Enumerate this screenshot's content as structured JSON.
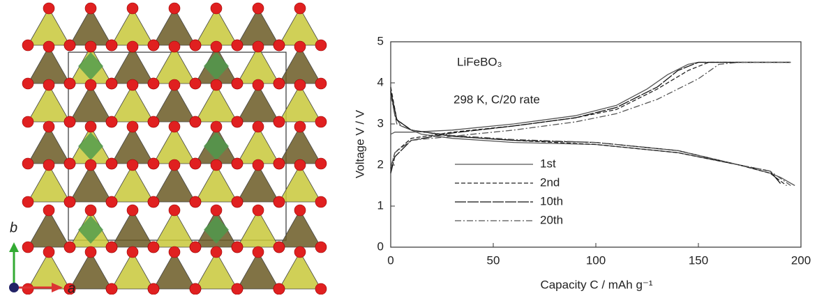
{
  "figure": {
    "axis_b": "b",
    "axis_a": "a"
  },
  "chart_data": {
    "type": "line",
    "x_label": "Capacity C / mAh g⁻¹",
    "y_label": "Voltage V / V",
    "annotations": [
      "LiFeBO₃",
      "298 K, C/20 rate"
    ],
    "xlim": [
      0,
      200
    ],
    "xticks": [
      0,
      50,
      100,
      150,
      200
    ],
    "ylim": [
      0,
      5
    ],
    "yticks": [
      0,
      1,
      2,
      3,
      4,
      5
    ],
    "legend": "lower-left",
    "series": [
      {
        "name": "1st",
        "color": "#555",
        "dash": "solid",
        "x": [
          0,
          2,
          10,
          30,
          60,
          90,
          110,
          125,
          135,
          145,
          150,
          170,
          195,
          null,
          0,
          2,
          5,
          15,
          30,
          60,
          100,
          140,
          170,
          185,
          190,
          197
        ],
        "values": [
          2.75,
          2.8,
          2.8,
          2.85,
          3.0,
          3.2,
          3.45,
          3.85,
          4.2,
          4.45,
          4.5,
          4.5,
          4.5,
          null,
          3.8,
          3.2,
          2.95,
          2.75,
          2.65,
          2.55,
          2.5,
          2.3,
          2.0,
          1.8,
          1.7,
          1.5
        ]
      },
      {
        "name": "2nd",
        "color": "#222",
        "dash": "dashed",
        "x": [
          0,
          2,
          10,
          30,
          60,
          90,
          110,
          130,
          145,
          155,
          170,
          195,
          null,
          0,
          3,
          10,
          30,
          60,
          100,
          140,
          170,
          185,
          193
        ],
        "values": [
          1.9,
          2.3,
          2.65,
          2.8,
          2.95,
          3.15,
          3.35,
          3.85,
          4.3,
          4.5,
          4.5,
          4.5,
          null,
          3.9,
          3.1,
          2.85,
          2.7,
          2.6,
          2.5,
          2.3,
          2.0,
          1.8,
          1.5
        ]
      },
      {
        "name": "10th",
        "color": "#111",
        "dash": "longdash",
        "x": [
          0,
          2,
          10,
          30,
          60,
          90,
          110,
          130,
          140,
          150,
          170,
          195,
          null,
          0,
          3,
          10,
          30,
          60,
          100,
          140,
          170,
          185,
          190
        ],
        "values": [
          1.8,
          2.2,
          2.6,
          2.78,
          2.95,
          3.15,
          3.4,
          3.9,
          4.3,
          4.5,
          4.5,
          4.5,
          null,
          3.8,
          3.1,
          2.85,
          2.7,
          2.6,
          2.55,
          2.35,
          2.0,
          1.85,
          1.55
        ]
      },
      {
        "name": "20th",
        "color": "#555",
        "dash": "dashdot",
        "x": [
          0,
          2,
          10,
          30,
          60,
          90,
          110,
          130,
          150,
          160,
          170,
          195,
          null,
          0,
          3,
          10,
          30,
          60,
          100,
          140,
          170,
          185,
          195
        ],
        "values": [
          1.95,
          2.3,
          2.6,
          2.7,
          2.85,
          3.05,
          3.25,
          3.6,
          4.1,
          4.45,
          4.5,
          4.5,
          null,
          3.7,
          3.0,
          2.85,
          2.72,
          2.62,
          2.55,
          2.35,
          2.0,
          1.85,
          1.5
        ]
      }
    ]
  }
}
